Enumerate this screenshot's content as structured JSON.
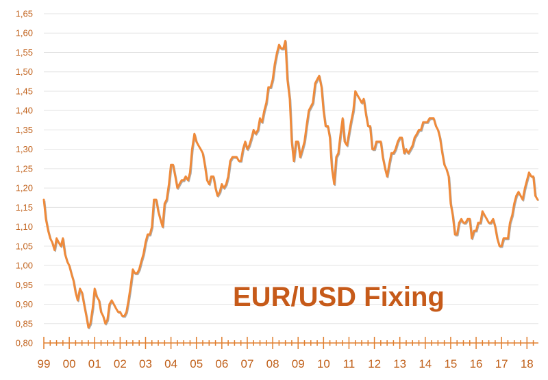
{
  "chart_data": {
    "type": "line",
    "title": "EUR/USD Fixing",
    "xlabel": "",
    "ylabel": "",
    "ylim": [
      0.8,
      1.65
    ],
    "xlim": [
      1999.0,
      2018.45
    ],
    "grid": "horizontal",
    "legend": "none",
    "y_ticks": [
      "0,80",
      "0,85",
      "0,90",
      "0,95",
      "1,00",
      "1,05",
      "1,10",
      "1,15",
      "1,20",
      "1,25",
      "1,30",
      "1,35",
      "1,40",
      "1,45",
      "1,50",
      "1,55",
      "1,60",
      "1,65"
    ],
    "x_tick_labels": [
      "99",
      "00",
      "01",
      "02",
      "03",
      "04",
      "05",
      "06",
      "07",
      "08",
      "09",
      "10",
      "11",
      "12",
      "13",
      "14",
      "15",
      "16",
      "17",
      "18"
    ],
    "colors": {
      "line": "#ef8a3a",
      "shadow": "#8a8a8a",
      "axis": "#e07e2e",
      "text": "#c0601a",
      "title": "#c65a19"
    },
    "series": [
      {
        "x": [
          1999.0,
          1999.08,
          1999.17,
          1999.25,
          1999.33,
          1999.42,
          1999.5,
          1999.58,
          1999.67,
          1999.75,
          1999.83,
          1999.92,
          2000.0,
          2000.08,
          2000.17,
          2000.25,
          2000.33,
          2000.42,
          2000.5,
          2000.58,
          2000.67,
          2000.75,
          2000.83,
          2000.92,
          2001.0,
          2001.08,
          2001.17,
          2001.25,
          2001.33,
          2001.42,
          2001.5,
          2001.58,
          2001.67,
          2001.75,
          2001.83,
          2001.92,
          2002.0,
          2002.08,
          2002.17,
          2002.25,
          2002.33,
          2002.42,
          2002.5,
          2002.58,
          2002.67,
          2002.75,
          2002.83,
          2002.92,
          2003.0,
          2003.08,
          2003.17,
          2003.25,
          2003.33,
          2003.42,
          2003.5,
          2003.58,
          2003.67,
          2003.75,
          2003.83,
          2003.92,
          2004.0,
          2004.08,
          2004.17,
          2004.25,
          2004.33,
          2004.42,
          2004.5,
          2004.58,
          2004.67,
          2004.75,
          2004.83,
          2004.92,
          2005.0,
          2005.08,
          2005.17,
          2005.25,
          2005.33,
          2005.42,
          2005.5,
          2005.58,
          2005.67,
          2005.75,
          2005.83,
          2005.92,
          2006.0,
          2006.08,
          2006.17,
          2006.25,
          2006.33,
          2006.42,
          2006.5,
          2006.58,
          2006.67,
          2006.75,
          2006.83,
          2006.92,
          2007.0,
          2007.08,
          2007.17,
          2007.25,
          2007.33,
          2007.42,
          2007.5,
          2007.58,
          2007.67,
          2007.75,
          2007.83,
          2007.92,
          2008.0,
          2008.08,
          2008.17,
          2008.25,
          2008.33,
          2008.42,
          2008.5,
          2008.58,
          2008.67,
          2008.75,
          2008.83,
          2008.92,
          2009.0,
          2009.08,
          2009.17,
          2009.25,
          2009.33,
          2009.42,
          2009.5,
          2009.58,
          2009.67,
          2009.75,
          2009.83,
          2009.92,
          2010.0,
          2010.08,
          2010.17,
          2010.25,
          2010.33,
          2010.42,
          2010.5,
          2010.58,
          2010.67,
          2010.75,
          2010.83,
          2010.92,
          2011.0,
          2011.08,
          2011.17,
          2011.25,
          2011.33,
          2011.42,
          2011.5,
          2011.58,
          2011.67,
          2011.75,
          2011.83,
          2011.92,
          2012.0,
          2012.08,
          2012.17,
          2012.25,
          2012.33,
          2012.42,
          2012.5,
          2012.58,
          2012.67,
          2012.75,
          2012.83,
          2012.92,
          2013.0,
          2013.08,
          2013.17,
          2013.25,
          2013.33,
          2013.42,
          2013.5,
          2013.58,
          2013.67,
          2013.75,
          2013.83,
          2013.92,
          2014.0,
          2014.08,
          2014.17,
          2014.25,
          2014.33,
          2014.42,
          2014.5,
          2014.58,
          2014.67,
          2014.75,
          2014.83,
          2014.92,
          2015.0,
          2015.08,
          2015.17,
          2015.25,
          2015.33,
          2015.42,
          2015.5,
          2015.58,
          2015.67,
          2015.75,
          2015.83,
          2015.92,
          2016.0,
          2016.08,
          2016.17,
          2016.25,
          2016.33,
          2016.42,
          2016.5,
          2016.58,
          2016.67,
          2016.75,
          2016.83,
          2016.92,
          2017.0,
          2017.08,
          2017.17,
          2017.25,
          2017.33,
          2017.42,
          2017.5,
          2017.58,
          2017.67,
          2017.75,
          2017.83,
          2017.92,
          2018.0,
          2018.08,
          2018.17,
          2018.25,
          2018.33,
          2018.42
        ],
        "y": [
          1.17,
          1.12,
          1.09,
          1.07,
          1.06,
          1.04,
          1.07,
          1.06,
          1.05,
          1.07,
          1.03,
          1.01,
          1.0,
          0.98,
          0.96,
          0.93,
          0.91,
          0.94,
          0.93,
          0.9,
          0.87,
          0.84,
          0.85,
          0.89,
          0.94,
          0.92,
          0.91,
          0.88,
          0.87,
          0.85,
          0.86,
          0.9,
          0.91,
          0.9,
          0.89,
          0.88,
          0.88,
          0.87,
          0.87,
          0.88,
          0.91,
          0.95,
          0.99,
          0.98,
          0.98,
          0.99,
          1.01,
          1.03,
          1.06,
          1.08,
          1.08,
          1.1,
          1.17,
          1.17,
          1.14,
          1.12,
          1.1,
          1.16,
          1.17,
          1.21,
          1.26,
          1.26,
          1.23,
          1.2,
          1.21,
          1.22,
          1.22,
          1.23,
          1.22,
          1.24,
          1.3,
          1.34,
          1.32,
          1.31,
          1.3,
          1.29,
          1.26,
          1.22,
          1.21,
          1.23,
          1.23,
          1.2,
          1.18,
          1.19,
          1.21,
          1.2,
          1.21,
          1.23,
          1.27,
          1.28,
          1.28,
          1.28,
          1.27,
          1.27,
          1.3,
          1.32,
          1.3,
          1.31,
          1.33,
          1.35,
          1.34,
          1.35,
          1.38,
          1.37,
          1.4,
          1.42,
          1.46,
          1.46,
          1.48,
          1.52,
          1.55,
          1.57,
          1.56,
          1.56,
          1.58,
          1.48,
          1.43,
          1.32,
          1.27,
          1.32,
          1.32,
          1.28,
          1.3,
          1.32,
          1.36,
          1.4,
          1.41,
          1.42,
          1.47,
          1.48,
          1.49,
          1.46,
          1.4,
          1.36,
          1.36,
          1.33,
          1.25,
          1.21,
          1.28,
          1.29,
          1.34,
          1.38,
          1.32,
          1.31,
          1.34,
          1.37,
          1.4,
          1.45,
          1.44,
          1.43,
          1.42,
          1.43,
          1.39,
          1.36,
          1.36,
          1.3,
          1.3,
          1.32,
          1.32,
          1.32,
          1.28,
          1.25,
          1.23,
          1.26,
          1.29,
          1.29,
          1.3,
          1.32,
          1.33,
          1.33,
          1.29,
          1.3,
          1.29,
          1.3,
          1.31,
          1.33,
          1.34,
          1.35,
          1.35,
          1.37,
          1.37,
          1.37,
          1.38,
          1.38,
          1.38,
          1.36,
          1.35,
          1.33,
          1.29,
          1.26,
          1.25,
          1.23,
          1.16,
          1.13,
          1.08,
          1.08,
          1.11,
          1.12,
          1.11,
          1.11,
          1.12,
          1.12,
          1.07,
          1.09,
          1.09,
          1.11,
          1.11,
          1.14,
          1.13,
          1.12,
          1.11,
          1.11,
          1.12,
          1.1,
          1.07,
          1.05,
          1.05,
          1.07,
          1.07,
          1.07,
          1.11,
          1.13,
          1.16,
          1.18,
          1.19,
          1.18,
          1.17,
          1.2,
          1.22,
          1.24,
          1.23,
          1.23,
          1.18,
          1.17
        ]
      }
    ]
  }
}
